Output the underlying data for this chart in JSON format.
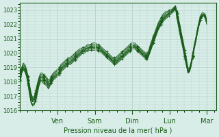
{
  "title": "",
  "xlabel": "Pression niveau de la mer( hPa )",
  "ylabel": "",
  "bg_color": "#d8ede8",
  "plot_bg_color": "#d8ede8",
  "grid_color": "#b8d4cc",
  "line_color": "#1a5c1a",
  "marker_color": "#1a5c1a",
  "ylim": [
    1016,
    1023.5
  ],
  "yticks": [
    1016,
    1017,
    1018,
    1019,
    1020,
    1021,
    1022,
    1023
  ],
  "day_labels": [
    "Ven",
    "Sam",
    "Dim",
    "Lun",
    "Mar"
  ],
  "day_positions": [
    0.2,
    0.4,
    0.6,
    0.8,
    1.0
  ],
  "n_points": 120,
  "series": [
    [
      1018.3,
      1018.8,
      1019.0,
      1018.9,
      1018.6,
      1018.1,
      1017.4,
      1016.8,
      1016.6,
      1016.7,
      1017.0,
      1017.5,
      1018.0,
      1018.3,
      1018.3,
      1018.2,
      1018.1,
      1018.0,
      1017.8,
      1017.9,
      1018.1,
      1018.3,
      1018.4,
      1018.5,
      1018.6,
      1018.7,
      1018.9,
      1019.0,
      1019.1,
      1019.2,
      1019.3,
      1019.4,
      1019.4,
      1019.5,
      1019.6,
      1019.7,
      1019.8,
      1019.9,
      1020.0,
      1020.1,
      1020.2,
      1020.2,
      1020.3,
      1020.3,
      1020.4,
      1020.4,
      1020.4,
      1020.4,
      1020.4,
      1020.4,
      1020.3,
      1020.3,
      1020.2,
      1020.1,
      1020.0,
      1019.9,
      1019.8,
      1019.7,
      1019.6,
      1019.5,
      1019.4,
      1019.4,
      1019.5,
      1019.6,
      1019.7,
      1019.8,
      1019.9,
      1020.0,
      1020.1,
      1020.2,
      1020.3,
      1020.4,
      1020.5,
      1020.5,
      1020.4,
      1020.3,
      1020.2,
      1020.1,
      1020.0,
      1019.9,
      1019.8,
      1019.7,
      1020.0,
      1020.3,
      1020.6,
      1020.9,
      1021.2,
      1021.5,
      1021.8,
      1022.0,
      1022.2,
      1022.4,
      1022.5,
      1022.6,
      1022.7,
      1022.8,
      1022.9,
      1023.0,
      1023.1,
      1023.2,
      1022.6,
      1022.1,
      1021.6,
      1021.1,
      1020.6,
      1020.0,
      1019.4,
      1018.8,
      1018.8,
      1019.2,
      1019.8,
      1020.4,
      1020.9,
      1021.5,
      1022.0,
      1022.4,
      1022.6,
      1022.7,
      1022.5,
      1022.1
    ],
    [
      1018.5,
      1018.9,
      1019.1,
      1019.0,
      1018.7,
      1018.2,
      1017.6,
      1017.0,
      1016.7,
      1016.9,
      1017.2,
      1017.7,
      1018.1,
      1018.4,
      1018.4,
      1018.3,
      1018.2,
      1018.1,
      1017.9,
      1018.0,
      1018.2,
      1018.4,
      1018.5,
      1018.6,
      1018.7,
      1018.8,
      1019.0,
      1019.1,
      1019.2,
      1019.3,
      1019.4,
      1019.5,
      1019.5,
      1019.6,
      1019.7,
      1019.8,
      1019.9,
      1020.0,
      1020.1,
      1020.1,
      1020.2,
      1020.2,
      1020.3,
      1020.4,
      1020.4,
      1020.4,
      1020.5,
      1020.5,
      1020.5,
      1020.4,
      1020.4,
      1020.3,
      1020.2,
      1020.1,
      1020.0,
      1019.9,
      1019.8,
      1019.7,
      1019.6,
      1019.5,
      1019.5,
      1019.5,
      1019.6,
      1019.7,
      1019.8,
      1019.9,
      1020.0,
      1020.1,
      1020.2,
      1020.3,
      1020.4,
      1020.5,
      1020.5,
      1020.5,
      1020.4,
      1020.3,
      1020.2,
      1020.1,
      1020.0,
      1019.9,
      1019.8,
      1019.8,
      1020.0,
      1020.4,
      1020.7,
      1021.0,
      1021.3,
      1021.6,
      1021.9,
      1022.1,
      1022.3,
      1022.5,
      1022.6,
      1022.7,
      1022.7,
      1022.8,
      1022.8,
      1022.9,
      1023.0,
      1023.1,
      1022.8,
      1022.4,
      1021.9,
      1021.3,
      1020.8,
      1020.2,
      1019.6,
      1019.0,
      1018.9,
      1019.3,
      1019.9,
      1020.5,
      1021.0,
      1021.5,
      1022.0,
      1022.4,
      1022.6,
      1022.6,
      1022.5,
      1022.2
    ],
    [
      1018.2,
      1018.7,
      1018.9,
      1018.8,
      1018.5,
      1017.9,
      1017.2,
      1016.6,
      1016.4,
      1016.5,
      1016.8,
      1017.3,
      1017.8,
      1018.2,
      1018.2,
      1018.1,
      1018.0,
      1017.9,
      1017.7,
      1017.8,
      1018.0,
      1018.2,
      1018.3,
      1018.4,
      1018.5,
      1018.6,
      1018.8,
      1018.9,
      1019.0,
      1019.1,
      1019.2,
      1019.3,
      1019.3,
      1019.4,
      1019.5,
      1019.6,
      1019.7,
      1019.8,
      1019.9,
      1020.0,
      1020.1,
      1020.1,
      1020.2,
      1020.2,
      1020.3,
      1020.3,
      1020.3,
      1020.3,
      1020.3,
      1020.3,
      1020.2,
      1020.2,
      1020.1,
      1020.0,
      1019.9,
      1019.8,
      1019.7,
      1019.6,
      1019.5,
      1019.4,
      1019.3,
      1019.3,
      1019.4,
      1019.5,
      1019.6,
      1019.7,
      1019.8,
      1019.9,
      1020.0,
      1020.1,
      1020.2,
      1020.3,
      1020.4,
      1020.4,
      1020.3,
      1020.2,
      1020.1,
      1020.0,
      1019.9,
      1019.8,
      1019.7,
      1019.6,
      1019.9,
      1020.2,
      1020.5,
      1020.8,
      1021.1,
      1021.4,
      1021.7,
      1021.9,
      1022.1,
      1022.3,
      1022.4,
      1022.5,
      1022.6,
      1022.7,
      1022.8,
      1022.9,
      1023.0,
      1023.2,
      1022.5,
      1021.9,
      1021.3,
      1020.8,
      1020.3,
      1019.7,
      1019.2,
      1018.7,
      1018.7,
      1019.1,
      1019.7,
      1020.3,
      1020.8,
      1021.4,
      1021.9,
      1022.3,
      1022.5,
      1022.7,
      1022.6,
      1022.0
    ],
    [
      1018.4,
      1018.8,
      1019.0,
      1018.9,
      1018.7,
      1018.1,
      1017.5,
      1016.9,
      1016.6,
      1016.8,
      1017.1,
      1017.6,
      1018.0,
      1018.3,
      1018.3,
      1018.2,
      1018.1,
      1018.0,
      1017.8,
      1017.9,
      1018.1,
      1018.3,
      1018.4,
      1018.5,
      1018.6,
      1018.7,
      1018.9,
      1019.0,
      1019.1,
      1019.2,
      1019.3,
      1019.4,
      1019.4,
      1019.5,
      1019.6,
      1019.7,
      1019.8,
      1019.9,
      1020.0,
      1020.1,
      1020.2,
      1020.2,
      1020.3,
      1020.3,
      1020.4,
      1020.4,
      1020.4,
      1020.4,
      1020.4,
      1020.4,
      1020.3,
      1020.3,
      1020.2,
      1020.1,
      1020.0,
      1019.9,
      1019.8,
      1019.7,
      1019.6,
      1019.5,
      1019.4,
      1019.4,
      1019.5,
      1019.6,
      1019.7,
      1019.8,
      1019.9,
      1020.0,
      1020.1,
      1020.2,
      1020.3,
      1020.4,
      1020.5,
      1020.5,
      1020.4,
      1020.3,
      1020.2,
      1020.1,
      1020.0,
      1019.9,
      1019.8,
      1019.7,
      1020.0,
      1020.3,
      1020.6,
      1020.9,
      1021.2,
      1021.5,
      1021.8,
      1022.0,
      1022.2,
      1022.4,
      1022.5,
      1022.6,
      1022.7,
      1022.8,
      1022.9,
      1023.0,
      1023.1,
      1023.3,
      1022.8,
      1022.2,
      1021.6,
      1021.0,
      1020.4,
      1019.8,
      1019.2,
      1018.6,
      1018.8,
      1019.2,
      1019.8,
      1020.4,
      1020.9,
      1021.5,
      1022.0,
      1022.4,
      1022.6,
      1022.7,
      1022.5,
      1022.1
    ],
    [
      1018.6,
      1018.9,
      1019.2,
      1019.1,
      1018.8,
      1018.3,
      1017.7,
      1017.1,
      1016.8,
      1016.9,
      1017.3,
      1017.8,
      1018.2,
      1018.5,
      1018.5,
      1018.4,
      1018.3,
      1018.2,
      1018.0,
      1018.1,
      1018.3,
      1018.5,
      1018.6,
      1018.7,
      1018.8,
      1018.9,
      1019.1,
      1019.2,
      1019.3,
      1019.4,
      1019.5,
      1019.6,
      1019.6,
      1019.7,
      1019.8,
      1019.9,
      1020.0,
      1020.1,
      1020.2,
      1020.2,
      1020.3,
      1020.3,
      1020.4,
      1020.5,
      1020.5,
      1020.5,
      1020.6,
      1020.6,
      1020.6,
      1020.5,
      1020.5,
      1020.4,
      1020.3,
      1020.2,
      1020.1,
      1020.0,
      1019.9,
      1019.8,
      1019.7,
      1019.6,
      1019.6,
      1019.6,
      1019.7,
      1019.8,
      1019.9,
      1020.0,
      1020.1,
      1020.2,
      1020.3,
      1020.4,
      1020.5,
      1020.6,
      1020.6,
      1020.6,
      1020.5,
      1020.4,
      1020.3,
      1020.2,
      1020.1,
      1020.0,
      1019.9,
      1019.9,
      1020.1,
      1020.5,
      1020.8,
      1021.1,
      1021.4,
      1021.7,
      1022.0,
      1022.2,
      1022.4,
      1022.6,
      1022.7,
      1022.8,
      1022.8,
      1022.9,
      1022.9,
      1023.0,
      1023.1,
      1023.2,
      1022.7,
      1022.2,
      1021.7,
      1021.1,
      1020.5,
      1019.9,
      1019.3,
      1018.7,
      1018.9,
      1019.3,
      1019.9,
      1020.5,
      1021.0,
      1021.6,
      1022.1,
      1022.5,
      1022.7,
      1022.7,
      1022.6,
      1022.2
    ],
    [
      1018.0,
      1018.6,
      1018.8,
      1018.7,
      1018.4,
      1017.8,
      1017.1,
      1016.5,
      1016.3,
      1016.4,
      1016.7,
      1017.2,
      1017.7,
      1018.0,
      1018.0,
      1017.9,
      1017.8,
      1017.7,
      1017.5,
      1017.7,
      1017.9,
      1018.1,
      1018.2,
      1018.3,
      1018.4,
      1018.5,
      1018.7,
      1018.8,
      1018.9,
      1019.0,
      1019.1,
      1019.2,
      1019.2,
      1019.3,
      1019.4,
      1019.5,
      1019.6,
      1019.7,
      1019.8,
      1019.9,
      1020.0,
      1020.0,
      1020.1,
      1020.1,
      1020.2,
      1020.2,
      1020.2,
      1020.2,
      1020.2,
      1020.2,
      1020.1,
      1020.1,
      1020.0,
      1019.9,
      1019.8,
      1019.7,
      1019.6,
      1019.5,
      1019.4,
      1019.3,
      1019.2,
      1019.2,
      1019.3,
      1019.4,
      1019.5,
      1019.6,
      1019.7,
      1019.8,
      1019.9,
      1020.0,
      1020.1,
      1020.2,
      1020.3,
      1020.3,
      1020.2,
      1020.1,
      1020.0,
      1019.9,
      1019.8,
      1019.7,
      1019.6,
      1019.5,
      1019.8,
      1020.1,
      1020.4,
      1020.7,
      1021.0,
      1021.3,
      1021.6,
      1021.8,
      1022.0,
      1022.2,
      1022.3,
      1022.4,
      1022.5,
      1022.6,
      1022.7,
      1022.8,
      1022.9,
      1023.1,
      1022.4,
      1021.8,
      1021.2,
      1020.7,
      1020.2,
      1019.6,
      1019.1,
      1018.6,
      1018.7,
      1019.1,
      1019.7,
      1020.3,
      1020.8,
      1021.4,
      1021.9,
      1022.3,
      1022.5,
      1022.6,
      1022.4,
      1022.0
    ],
    [
      1018.7,
      1019.0,
      1019.3,
      1019.2,
      1018.9,
      1018.4,
      1017.8,
      1017.2,
      1016.9,
      1017.0,
      1017.4,
      1017.9,
      1018.3,
      1018.6,
      1018.6,
      1018.5,
      1018.4,
      1018.3,
      1018.1,
      1018.2,
      1018.4,
      1018.6,
      1018.7,
      1018.8,
      1018.9,
      1019.0,
      1019.2,
      1019.3,
      1019.4,
      1019.5,
      1019.6,
      1019.7,
      1019.7,
      1019.8,
      1019.9,
      1020.0,
      1020.1,
      1020.2,
      1020.3,
      1020.3,
      1020.4,
      1020.4,
      1020.5,
      1020.6,
      1020.6,
      1020.6,
      1020.7,
      1020.7,
      1020.7,
      1020.6,
      1020.6,
      1020.5,
      1020.4,
      1020.3,
      1020.2,
      1020.1,
      1020.0,
      1019.9,
      1019.8,
      1019.7,
      1019.7,
      1019.7,
      1019.8,
      1019.9,
      1020.0,
      1020.1,
      1020.2,
      1020.3,
      1020.4,
      1020.5,
      1020.6,
      1020.7,
      1020.7,
      1020.7,
      1020.6,
      1020.5,
      1020.4,
      1020.3,
      1020.2,
      1020.1,
      1020.0,
      1020.0,
      1020.2,
      1020.6,
      1020.9,
      1021.2,
      1021.5,
      1021.8,
      1022.1,
      1022.3,
      1022.5,
      1022.7,
      1022.8,
      1022.9,
      1022.9,
      1023.0,
      1023.0,
      1023.1,
      1023.2,
      1023.3,
      1022.9,
      1022.3,
      1021.8,
      1021.2,
      1020.6,
      1020.0,
      1019.4,
      1018.8,
      1019.0,
      1019.4,
      1020.0,
      1020.6,
      1021.1,
      1021.7,
      1022.2,
      1022.6,
      1022.8,
      1022.8,
      1022.7,
      1022.3
    ],
    [
      1018.1,
      1018.7,
      1018.9,
      1018.8,
      1018.5,
      1017.9,
      1017.2,
      1016.6,
      1016.4,
      1016.5,
      1016.8,
      1017.3,
      1017.8,
      1018.1,
      1018.1,
      1018.0,
      1017.9,
      1017.8,
      1017.6,
      1017.8,
      1018.0,
      1018.2,
      1018.3,
      1018.4,
      1018.5,
      1018.6,
      1018.8,
      1018.9,
      1019.0,
      1019.1,
      1019.2,
      1019.3,
      1019.3,
      1019.4,
      1019.5,
      1019.6,
      1019.7,
      1019.8,
      1019.9,
      1020.0,
      1020.1,
      1020.1,
      1020.2,
      1020.2,
      1020.3,
      1020.3,
      1020.3,
      1020.3,
      1020.3,
      1020.3,
      1020.2,
      1020.2,
      1020.1,
      1020.0,
      1019.9,
      1019.8,
      1019.7,
      1019.6,
      1019.5,
      1019.4,
      1019.3,
      1019.3,
      1019.4,
      1019.5,
      1019.6,
      1019.7,
      1019.8,
      1019.9,
      1020.0,
      1020.1,
      1020.2,
      1020.3,
      1020.4,
      1020.4,
      1020.3,
      1020.2,
      1020.1,
      1020.0,
      1019.9,
      1019.8,
      1019.7,
      1019.6,
      1019.9,
      1020.2,
      1020.5,
      1020.8,
      1021.1,
      1021.4,
      1021.7,
      1021.9,
      1022.1,
      1022.3,
      1022.4,
      1022.5,
      1022.6,
      1022.7,
      1022.8,
      1022.9,
      1023.0,
      1023.2,
      1022.6,
      1022.0,
      1021.4,
      1020.9,
      1020.3,
      1019.8,
      1019.2,
      1018.7,
      1018.8,
      1019.2,
      1019.8,
      1020.4,
      1020.9,
      1021.5,
      1022.0,
      1022.4,
      1022.6,
      1022.7,
      1022.6,
      1022.1
    ]
  ]
}
